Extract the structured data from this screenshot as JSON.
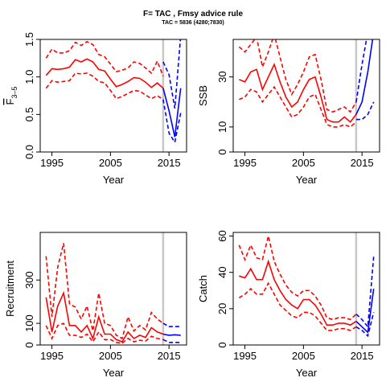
{
  "figure": {
    "title": "F= TAC , Fmsy advice rule",
    "subtitle": "TAC = 5836 (4280;7830)"
  },
  "colors": {
    "historic": "#ff0000",
    "forecast": "#0000ff",
    "marker": "#c8c8c8"
  },
  "chart_data": [
    {
      "type": "line",
      "name": "F3-5",
      "xlabel": "Year",
      "ylabel_main": "F",
      "ylabel_sub": "3–5",
      "xlim": [
        1993,
        2018
      ],
      "ylim": [
        0,
        1.5
      ],
      "xticks": [
        "1995",
        "2005",
        "2015"
      ],
      "yticks": [
        "0.0",
        "0.5",
        "1.0",
        "1.5"
      ],
      "ytick_values": [
        0,
        0.5,
        1.0,
        1.5
      ],
      "marker_year": 2014,
      "historic": {
        "x": [
          1994,
          1995,
          1996,
          1997,
          1998,
          1999,
          2000,
          2001,
          2002,
          2003,
          2004,
          2005,
          2006,
          2007,
          2008,
          2009,
          2010,
          2011,
          2012,
          2013,
          2014
        ],
        "mean": [
          1.02,
          1.11,
          1.1,
          1.11,
          1.13,
          1.23,
          1.2,
          1.24,
          1.2,
          1.1,
          1.08,
          0.97,
          0.87,
          0.9,
          0.94,
          0.99,
          0.98,
          0.93,
          0.86,
          0.92,
          0.85
        ],
        "lower": [
          0.85,
          0.95,
          0.93,
          0.94,
          0.95,
          1.05,
          1.04,
          1.05,
          1.01,
          0.94,
          0.92,
          0.82,
          0.71,
          0.74,
          0.78,
          0.82,
          0.81,
          0.76,
          0.71,
          0.75,
          0.7
        ],
        "upper": [
          1.25,
          1.37,
          1.32,
          1.32,
          1.35,
          1.46,
          1.42,
          1.47,
          1.43,
          1.3,
          1.27,
          1.17,
          1.07,
          1.09,
          1.12,
          1.2,
          1.18,
          1.12,
          1.05,
          1.21,
          1.01
        ]
      },
      "forecast": {
        "x": [
          2014,
          2015,
          2016,
          2017
        ],
        "mean": [
          0.85,
          0.55,
          0.2,
          0.85
        ],
        "lower": [
          0.7,
          0.25,
          0.13,
          0.52
        ],
        "upper": [
          1.2,
          1.03,
          0.58,
          1.55
        ]
      }
    },
    {
      "type": "line",
      "name": "SSB",
      "xlabel": "Year",
      "ylabel_main": "SSB",
      "ylabel_sub": "",
      "xlim": [
        1993,
        2018
      ],
      "ylim": [
        0,
        45
      ],
      "xticks": [
        "1995",
        "2005",
        "2015"
      ],
      "yticks": [
        "0",
        "10",
        "30"
      ],
      "ytick_values": [
        0,
        10,
        30
      ],
      "marker_year": 2014,
      "historic": {
        "x": [
          1994,
          1995,
          1996,
          1997,
          1998,
          1999,
          2000,
          2001,
          2002,
          2003,
          2004,
          2005,
          2006,
          2007,
          2008,
          2009,
          2010,
          2011,
          2012,
          2013,
          2014
        ],
        "mean": [
          29,
          28,
          32,
          33,
          25,
          30,
          35,
          28,
          22,
          18,
          20,
          25,
          29,
          30,
          22,
          13,
          12,
          12,
          14,
          12,
          15
        ],
        "lower": [
          21,
          22,
          25,
          24,
          20,
          23,
          26,
          22,
          18,
          14,
          15,
          18,
          22,
          23,
          17,
          11,
          10,
          10,
          11,
          10,
          12
        ],
        "upper": [
          42,
          40,
          43,
          46,
          34,
          40,
          47,
          38,
          29,
          23,
          27,
          32,
          38,
          39,
          29,
          17,
          16,
          17,
          18,
          16,
          20
        ]
      },
      "forecast": {
        "x": [
          2014,
          2015,
          2016,
          2017
        ],
        "mean": [
          15,
          20,
          32,
          48
        ],
        "lower": [
          13,
          13,
          15,
          20
        ],
        "upper": [
          20,
          35,
          48,
          52
        ]
      }
    },
    {
      "type": "line",
      "name": "Recruitment",
      "xlabel": "Year",
      "ylabel_main": "Recruitment",
      "ylabel_sub": "",
      "xlim": [
        1993,
        2018
      ],
      "ylim": [
        0,
        520
      ],
      "xticks": [
        "1995",
        "2005",
        "2015"
      ],
      "yticks": [
        "0",
        "100",
        "300"
      ],
      "ytick_values": [
        0,
        100,
        300
      ],
      "marker_year": 2014,
      "historic": {
        "x": [
          1994,
          1995,
          1996,
          1997,
          1998,
          1999,
          2000,
          2001,
          2002,
          2003,
          2004,
          2005,
          2006,
          2007,
          2008,
          2009,
          2010,
          2011,
          2012,
          2013,
          2014
        ],
        "mean": [
          220,
          60,
          180,
          240,
          90,
          90,
          60,
          90,
          30,
          130,
          50,
          50,
          25,
          15,
          60,
          30,
          45,
          35,
          80,
          60,
          50
        ],
        "lower": [
          90,
          30,
          90,
          100,
          45,
          45,
          35,
          50,
          15,
          60,
          25,
          25,
          12,
          8,
          30,
          15,
          22,
          18,
          40,
          30,
          25
        ],
        "upper": [
          410,
          130,
          360,
          470,
          190,
          175,
          120,
          180,
          65,
          240,
          100,
          90,
          45,
          30,
          130,
          65,
          90,
          70,
          150,
          120,
          100
        ]
      },
      "forecast": {
        "x": [
          2014,
          2015,
          2016,
          2017
        ],
        "mean": [
          50,
          45,
          47,
          45
        ],
        "lower": [
          25,
          12,
          12,
          12
        ],
        "upper": [
          100,
          85,
          85,
          85
        ]
      }
    },
    {
      "type": "line",
      "name": "Catch",
      "xlabel": "Year",
      "ylabel_main": "Catch",
      "ylabel_sub": "",
      "xlim": [
        1993,
        2018
      ],
      "ylim": [
        0,
        62
      ],
      "xticks": [
        "1995",
        "2005",
        "2015"
      ],
      "yticks": [
        "0",
        "20",
        "40",
        "60"
      ],
      "ytick_values": [
        0,
        20,
        40,
        60
      ],
      "marker_year": 2014,
      "historic": {
        "x": [
          1994,
          1995,
          1996,
          1997,
          1998,
          1999,
          2000,
          2001,
          2002,
          2003,
          2004,
          2005,
          2006,
          2007,
          2008,
          2009,
          2010,
          2011,
          2012,
          2013,
          2014
        ],
        "mean": [
          38,
          37,
          42,
          36,
          36,
          46,
          36,
          30,
          25,
          22,
          20,
          25,
          25,
          22,
          17,
          11,
          11,
          12,
          12,
          11,
          13
        ],
        "lower": [
          26,
          28,
          31,
          28,
          28,
          34,
          28,
          22,
          19,
          16,
          15,
          18,
          18,
          16,
          12,
          8,
          8,
          9,
          9,
          8,
          10
        ],
        "upper": [
          55,
          47,
          55,
          48,
          47,
          60,
          46,
          39,
          33,
          29,
          27,
          30,
          30,
          27,
          22,
          15,
          14,
          15,
          15,
          14,
          17
        ]
      },
      "forecast": {
        "x": [
          2014,
          2015,
          2016,
          2017
        ],
        "mean": [
          13,
          10,
          7,
          31
        ],
        "lower": [
          10,
          8,
          5,
          18
        ],
        "upper": [
          17,
          14,
          10,
          49
        ]
      }
    }
  ]
}
